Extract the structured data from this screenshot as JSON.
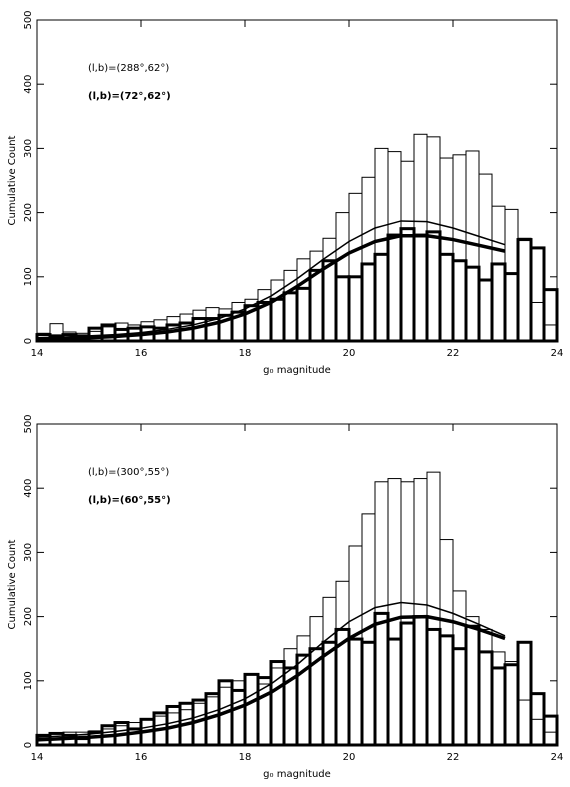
{
  "chart_data": [
    {
      "type": "histogram",
      "xlabel": "g₀ magnitude",
      "ylabel": "Cumulative Count",
      "xlim": [
        14,
        24
      ],
      "ylim": [
        0,
        500
      ],
      "xticks": [
        14,
        16,
        18,
        20,
        22,
        24
      ],
      "yticks": [
        0,
        100,
        200,
        300,
        400,
        500
      ],
      "bins": [
        14,
        14.25,
        14.5,
        14.75,
        15,
        15.25,
        15.5,
        15.75,
        16,
        16.25,
        16.5,
        16.75,
        17,
        17.25,
        17.5,
        17.75,
        18,
        18.25,
        18.5,
        18.75,
        19,
        19.25,
        19.5,
        19.75,
        20,
        20.25,
        20.5,
        20.75,
        21,
        21.25,
        21.5,
        21.75,
        22,
        22.25,
        22.5,
        22.75,
        23,
        23.25,
        23.5,
        23.75,
        24
      ],
      "curve_x": [
        14,
        14.5,
        15,
        15.5,
        16,
        16.5,
        17,
        17.5,
        18,
        18.5,
        19,
        19.5,
        20,
        20.5,
        21,
        21.5,
        22,
        22.5,
        23
      ],
      "series": [
        {
          "name": "(l,b)=(288°,62°)",
          "color": "#000000",
          "line_width": 1,
          "values": [
            12,
            27,
            14,
            12,
            15,
            22,
            28,
            25,
            30,
            33,
            38,
            42,
            48,
            52,
            50,
            60,
            65,
            80,
            95,
            110,
            128,
            140,
            160,
            200,
            230,
            255,
            300,
            295,
            280,
            322,
            318,
            285,
            290,
            296,
            260,
            210,
            205,
            160,
            60,
            25
          ],
          "curve_values": [
            5,
            6,
            8,
            10,
            13,
            18,
            25,
            35,
            50,
            70,
            97,
            127,
            155,
            176,
            187,
            186,
            176,
            163,
            150
          ]
        },
        {
          "name": "(l,b)=(72°,62°)",
          "color": "#000000",
          "line_width": 3,
          "values": [
            10,
            8,
            10,
            8,
            20,
            25,
            18,
            20,
            22,
            20,
            25,
            28,
            35,
            35,
            40,
            45,
            55,
            60,
            65,
            75,
            82,
            110,
            125,
            100,
            100,
            120,
            135,
            165,
            175,
            165,
            170,
            135,
            125,
            115,
            95,
            120,
            105,
            158,
            145,
            80
          ],
          "curve_values": [
            3,
            4,
            5,
            7,
            10,
            14,
            20,
            29,
            42,
            60,
            85,
            112,
            137,
            155,
            164,
            164,
            158,
            149,
            140
          ]
        }
      ]
    },
    {
      "type": "histogram",
      "xlabel": "g₀ magnitude",
      "ylabel": "Cumulative Count",
      "xlim": [
        14,
        24
      ],
      "ylim": [
        0,
        500
      ],
      "xticks": [
        14,
        16,
        18,
        20,
        22,
        24
      ],
      "yticks": [
        0,
        100,
        200,
        300,
        400,
        500
      ],
      "bins": [
        14,
        14.25,
        14.5,
        14.75,
        15,
        15.25,
        15.5,
        15.75,
        16,
        16.25,
        16.5,
        16.75,
        17,
        17.25,
        17.5,
        17.75,
        18,
        18.25,
        18.5,
        18.75,
        19,
        19.25,
        19.5,
        19.75,
        20,
        20.25,
        20.5,
        20.75,
        21,
        21.25,
        21.5,
        21.75,
        22,
        22.25,
        22.5,
        22.75,
        23,
        23.25,
        23.5,
        23.75,
        24
      ],
      "curve_x": [
        14,
        14.5,
        15,
        15.5,
        16,
        16.5,
        17,
        17.5,
        18,
        18.5,
        19,
        19.5,
        20,
        20.5,
        21,
        21.5,
        22,
        22.5,
        23
      ],
      "series": [
        {
          "name": "(l,b)=(300°,55°)",
          "color": "#000000",
          "line_width": 1,
          "values": [
            15,
            18,
            20,
            20,
            22,
            25,
            30,
            35,
            40,
            45,
            50,
            55,
            65,
            75,
            90,
            100,
            110,
            95,
            120,
            150,
            170,
            200,
            230,
            255,
            310,
            360,
            410,
            415,
            410,
            415,
            425,
            320,
            240,
            200,
            180,
            145,
            130,
            70,
            40,
            20
          ],
          "curve_values": [
            12,
            14,
            17,
            21,
            26,
            33,
            42,
            55,
            72,
            95,
            125,
            160,
            192,
            214,
            222,
            218,
            205,
            188,
            170
          ]
        },
        {
          "name": "(l,b)=(60°,55°)",
          "color": "#000000",
          "line_width": 3,
          "values": [
            15,
            18,
            15,
            10,
            20,
            30,
            35,
            25,
            40,
            50,
            60,
            65,
            70,
            80,
            100,
            85,
            110,
            105,
            130,
            120,
            140,
            150,
            160,
            180,
            165,
            160,
            205,
            165,
            190,
            200,
            180,
            170,
            150,
            185,
            145,
            120,
            125,
            160,
            80,
            45
          ],
          "curve_values": [
            8,
            10,
            12,
            15,
            20,
            26,
            35,
            47,
            62,
            82,
            108,
            138,
            166,
            188,
            199,
            200,
            192,
            180,
            166
          ]
        }
      ]
    }
  ]
}
